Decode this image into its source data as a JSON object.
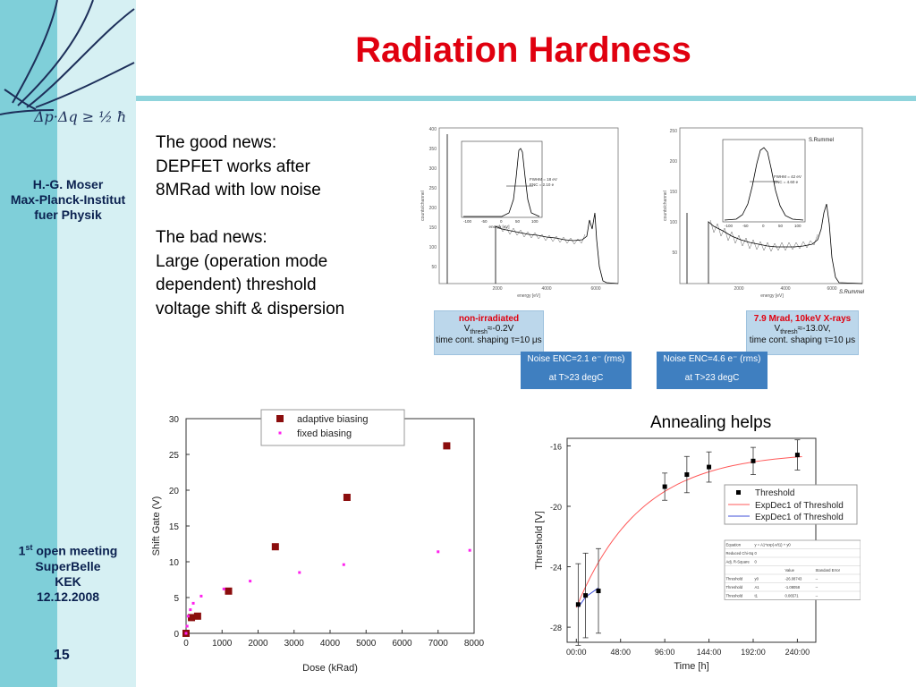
{
  "title": "Radiation Hardness",
  "sidebar": {
    "logo_text": "Δp·Δq ≥ ½ ħ",
    "author": [
      "H.-G. Moser",
      "Max-Planck-Institut",
      "fuer Physik"
    ],
    "meeting_line1_base": "1",
    "meeting_line1_sup": "st",
    "meeting_line1_rest": " open meeting",
    "meeting_lines": [
      "SuperBelle",
      "KEK",
      "12.12.2008"
    ],
    "page_number": "15"
  },
  "text": {
    "good_lines": [
      "The good news:",
      "DEPFET works after",
      "8MRad with low noise"
    ],
    "bad_lines": [
      "The bad news:",
      "Large (operation mode",
      "dependent) threshold",
      "voltage shift & dispersion"
    ],
    "annealing_caption": "Annealing helps"
  },
  "spectrum_panels": {
    "left": {
      "y_ticks": [
        "400",
        "350",
        "300",
        "250",
        "200",
        "150",
        "100",
        "50"
      ],
      "x_ticks": [
        "2000",
        "4000",
        "6000"
      ],
      "xlabel": "energy [eV]",
      "ylabel": "counts/channel",
      "inset_text": [
        "FWHM = 18 eV",
        "ENC = 2.10 e"
      ],
      "inset_xlabel": "energy [eV]",
      "inset_x_ticks": [
        "-100",
        "-50",
        "0",
        "50",
        "100"
      ],
      "label_title": "non-irradiated",
      "label_line2": "V",
      "label_line2_sub": "thresh",
      "label_line2_rest": "≈-0.2V",
      "label_line3": "time cont. shaping τ=10 μs",
      "noise_line1": "Noise ENC=2.1 e⁻ (rms)",
      "noise_line2": "at T>23 degC"
    },
    "right": {
      "y_ticks": [
        "250",
        "200",
        "150",
        "100",
        "50"
      ],
      "x_ticks": [
        "2000",
        "4000",
        "6000"
      ],
      "xlabel": "energy [eV]",
      "ylabel": "counts/channel",
      "inset_text": [
        "FWHM = 42 eV",
        "ENC = 4.60 e"
      ],
      "inset_xlabel": "energy [eV]",
      "inset_x_ticks": [
        "-100",
        "-50",
        "0",
        "50",
        "100"
      ],
      "credit": "S.Rummel",
      "credit_bottom": "S.Rummel",
      "label_title": "7.9 Mrad, 10keV X-rays",
      "label_line2": "V",
      "label_line2_sub": "thresh",
      "label_line2_rest": "≈-13.0V,",
      "label_line3": "time cont. shaping τ=10 μs",
      "noise_line1": "Noise ENC=4.6 e⁻ (rms)",
      "noise_line2": "at T>23 degC"
    }
  },
  "chart_data": [
    {
      "type": "scatter",
      "title": "",
      "xlabel": "Dose (kRad)",
      "ylabel": "Shift Gate (V)",
      "xlim": [
        0,
        8000
      ],
      "ylim": [
        0,
        30
      ],
      "x_ticks": [
        0,
        1000,
        2000,
        3000,
        4000,
        5000,
        6000,
        7000,
        8000
      ],
      "y_ticks": [
        0,
        5,
        10,
        15,
        20,
        25,
        30
      ],
      "legend_position": "top-right",
      "series": [
        {
          "name": "adaptive biasing",
          "color": "#8b0d0d",
          "marker": "square",
          "x": [
            0,
            150,
            320,
            1180,
            2480,
            4470,
            7240
          ],
          "y": [
            0,
            2.2,
            2.4,
            5.9,
            12.1,
            19.0,
            26.2
          ]
        },
        {
          "name": "fixed biasing",
          "color": "#ff22ee",
          "marker": "dot",
          "x": [
            0,
            30,
            60,
            120,
            200,
            420,
            1050,
            1780,
            3150,
            4380,
            7000,
            7880
          ],
          "y": [
            0,
            1.0,
            2.4,
            3.3,
            4.2,
            5.2,
            6.2,
            7.3,
            8.5,
            9.6,
            11.4,
            11.6
          ]
        }
      ]
    },
    {
      "type": "scatter",
      "title": "",
      "xlabel": "Time [h]",
      "ylabel": "Threshold [V]",
      "xlim": [
        -10,
        260
      ],
      "ylim": [
        -29,
        -15.5
      ],
      "x_ticks": [
        0,
        48,
        96,
        144,
        192,
        240
      ],
      "x_tick_labels": [
        "00:00",
        "48:00",
        "96:00",
        "144:00",
        "192:00",
        "240:00"
      ],
      "y_ticks": [
        -28,
        -24,
        -20,
        -16
      ],
      "legend_position": "middle-right",
      "series": [
        {
          "name": "Threshold",
          "color": "#000000",
          "marker": "square",
          "x": [
            2,
            10,
            24,
            96,
            120,
            144,
            192,
            240
          ],
          "y": [
            -26.5,
            -25.9,
            -25.6,
            -18.7,
            -17.9,
            -17.4,
            -17.0,
            -16.6
          ],
          "err": [
            2.7,
            2.8,
            2.8,
            0.9,
            1.2,
            1.0,
            0.9,
            1.0
          ]
        },
        {
          "name": "ExpDec1 of Threshold",
          "color": "#ff5a5a",
          "line": "exp_fit"
        },
        {
          "name": "ExpDec1 of Threshold",
          "color": "#3f4fd8",
          "line": "short_fit"
        }
      ],
      "fit_table": {
        "rows": [
          [
            "Equation",
            "y = A1*exp(-x/t1) + y0",
            "",
            ""
          ],
          [
            "Reduced Chi-Sq",
            "0",
            "",
            ""
          ],
          [
            "Adj. R-Square",
            "0",
            "",
            ""
          ],
          [
            "",
            "",
            "Value",
            "Standard Error"
          ],
          [
            "Threshold",
            "y0",
            "-26.08743",
            "--"
          ],
          [
            "Threshold",
            "A1",
            "-1.08058",
            "--"
          ],
          [
            "Threshold",
            "t1",
            "0.06571",
            "--"
          ]
        ]
      }
    }
  ]
}
